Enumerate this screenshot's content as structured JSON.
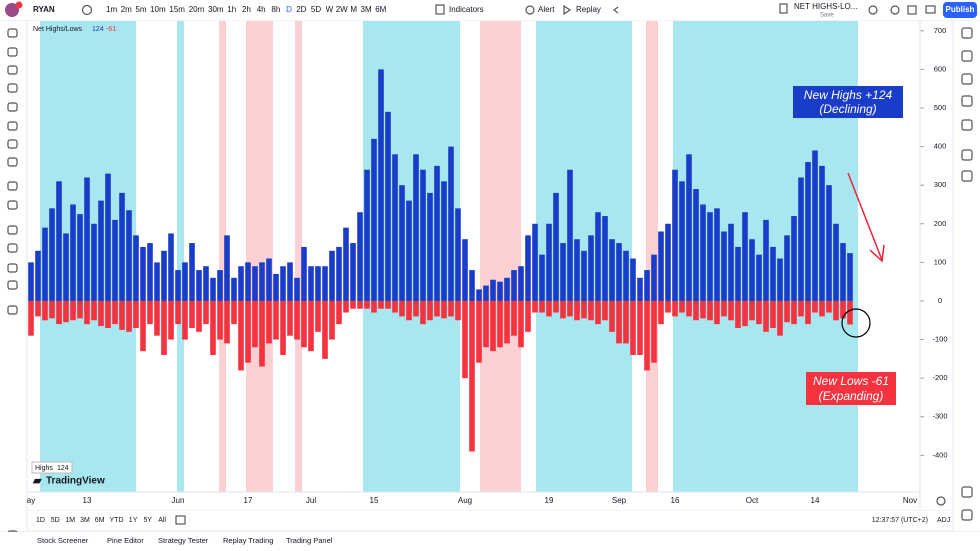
{
  "toolbar": {
    "symbol": "RYAN",
    "intervals": [
      "1m",
      "2m",
      "5m",
      "10m",
      "15m",
      "20m",
      "30m",
      "1h",
      "2h",
      "4h",
      "8h",
      "D",
      "2D",
      "5D",
      "W",
      "2W",
      "M",
      "3M",
      "6M"
    ],
    "indicators": "Indicators",
    "alert": "Alert",
    "replay": "Replay",
    "layout_name": "NET HIGHS-LO...",
    "layout_status": "Save",
    "publish": "Publish"
  },
  "chart_data": {
    "type": "bar",
    "indicator_legend": {
      "name": "Net Highs/Lows",
      "values": [
        "124",
        "-61"
      ]
    },
    "categories": [
      "ay",
      null,
      null,
      null,
      null,
      null,
      null,
      null,
      "13",
      null,
      null,
      null,
      null,
      null,
      null,
      null,
      null,
      null,
      null,
      null,
      null,
      "Jun",
      null,
      null,
      null,
      null,
      null,
      null,
      null,
      null,
      null,
      "17",
      null,
      null,
      null,
      null,
      null,
      null,
      null,
      null,
      "Jul",
      null,
      null,
      null,
      null,
      null,
      null,
      null,
      null,
      "15",
      null,
      null,
      null,
      null,
      null,
      null,
      null,
      null,
      null,
      null,
      null,
      null,
      "Aug",
      null,
      null,
      null,
      null,
      null,
      null,
      null,
      null,
      null,
      null,
      null,
      "19",
      null,
      null,
      null,
      null,
      null,
      null,
      null,
      null,
      null,
      "Sep",
      null,
      null,
      null,
      null,
      null,
      null,
      null,
      "16",
      null,
      null,
      null,
      null,
      null,
      null,
      null,
      null,
      null,
      null,
      "Oct",
      null,
      null,
      null,
      null,
      null,
      null,
      null,
      null,
      "14",
      null,
      null,
      null,
      null,
      null
    ],
    "future_label": "Nov",
    "series": [
      {
        "name": "Highs",
        "color": "#1a3dc9",
        "values": [
          100,
          130,
          190,
          240,
          310,
          175,
          250,
          225,
          320,
          200,
          260,
          330,
          210,
          280,
          235,
          170,
          140,
          150,
          100,
          130,
          175,
          80,
          100,
          150,
          80,
          90,
          60,
          80,
          170,
          60,
          90,
          100,
          90,
          100,
          110,
          70,
          90,
          100,
          60,
          140,
          90,
          90,
          90,
          130,
          140,
          190,
          150,
          230,
          340,
          420,
          600,
          490,
          380,
          300,
          260,
          380,
          340,
          280,
          350,
          310,
          400,
          240,
          160,
          80,
          30,
          40,
          55,
          50,
          60,
          80,
          90,
          170,
          200,
          120,
          200,
          280,
          150,
          340,
          160,
          130,
          170,
          230,
          220,
          160,
          150,
          130,
          110,
          60,
          80,
          120,
          180,
          200,
          340,
          310,
          380,
          290,
          250,
          230,
          240,
          180,
          200,
          140,
          230,
          160,
          120,
          210,
          140,
          110,
          170,
          220,
          320,
          360,
          390,
          350,
          300,
          200,
          150,
          124
        ]
      },
      {
        "name": "Lows",
        "color": "#f5333f",
        "values": [
          -90,
          -40,
          -50,
          -45,
          -60,
          -55,
          -50,
          -45,
          -60,
          -50,
          -65,
          -70,
          -60,
          -75,
          -80,
          -70,
          -130,
          -60,
          -90,
          -140,
          -100,
          -60,
          -100,
          -70,
          -80,
          -60,
          -140,
          -100,
          -110,
          -60,
          -180,
          -160,
          -120,
          -170,
          -110,
          -100,
          -140,
          -90,
          -100,
          -120,
          -130,
          -80,
          -150,
          -100,
          -60,
          -30,
          -20,
          -20,
          -20,
          -30,
          -20,
          -20,
          -30,
          -40,
          -50,
          -40,
          -60,
          -50,
          -40,
          -45,
          -40,
          -50,
          -200,
          -390,
          -160,
          -120,
          -130,
          -120,
          -110,
          -90,
          -120,
          -80,
          -30,
          -30,
          -40,
          -30,
          -45,
          -40,
          -50,
          -45,
          -50,
          -60,
          -50,
          -80,
          -110,
          -110,
          -140,
          -140,
          -180,
          -160,
          -60,
          -30,
          -40,
          -30,
          -40,
          -50,
          -45,
          -50,
          -60,
          -40,
          -50,
          -70,
          -65,
          -50,
          -60,
          -80,
          -70,
          -90,
          -55,
          -60,
          -40,
          -60,
          -30,
          -40,
          -30,
          -50,
          -45,
          -61
        ]
      }
    ],
    "ylim": [
      -495,
      728
    ],
    "yticks": [
      700,
      600,
      500,
      400,
      300,
      200,
      100,
      0,
      -100,
      -200,
      -300,
      -400
    ],
    "grid": false,
    "annotations": [
      {
        "lines": [
          "New Highs +124",
          "(Declining)"
        ]
      },
      {
        "lines": [
          "New Lows -61",
          "(Expanding)"
        ]
      }
    ],
    "badge": {
      "label": "Highs",
      "value": "124"
    },
    "watermark": "TradingView"
  },
  "range_bar": {
    "ranges": [
      "1D",
      "5D",
      "1M",
      "3M",
      "6M",
      "YTD",
      "1Y",
      "5Y",
      "All"
    ],
    "clock": "12:37:57 (UTC+2)",
    "adj": "ADJ"
  },
  "bottom_tabs": [
    "Stock Screener",
    "Pine Editor",
    "Strategy Tester",
    "Replay Trading",
    "Trading Panel"
  ]
}
